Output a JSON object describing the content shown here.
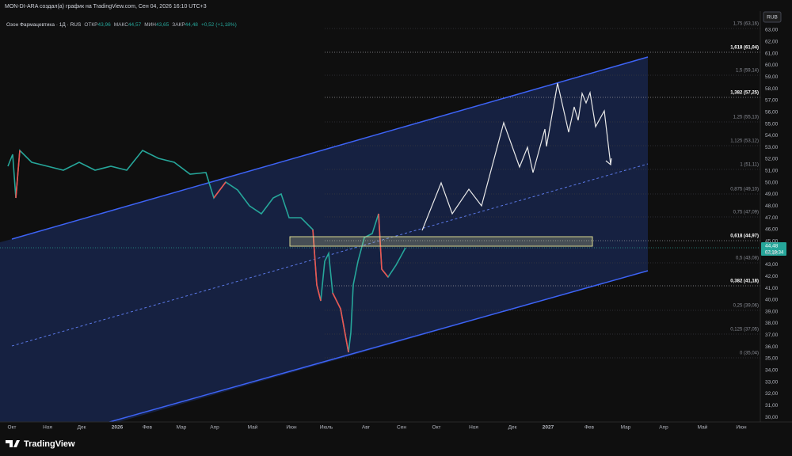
{
  "header": {
    "title": "MON-DI-ARA создал(а) график на TradingView.com, Сен 04, 2026 16:10 UTC+3"
  },
  "legend": {
    "symbol": "Озон Фармацевтика · 1Д · RUS",
    "open_label": "ОТКР",
    "open": "43,96",
    "high_label": "МАКС",
    "high": "44,57",
    "low_label": "МИН",
    "low": "43,65",
    "close_label": "ЗАКР",
    "close": "44,48",
    "change": "+0,52 (+1,18%)"
  },
  "currency": "RUB",
  "price_axis": [
    "63,00",
    "62,00",
    "61,00",
    "60,00",
    "59,00",
    "58,00",
    "57,00",
    "56,00",
    "55,00",
    "54,00",
    "53,00",
    "52,00",
    "51,00",
    "50,00",
    "49,00",
    "48,00",
    "47,00",
    "46,00",
    "45,00",
    "44,00",
    "43,00",
    "42,00",
    "41,00",
    "40,00",
    "39,00",
    "38,00",
    "37,00",
    "36,00",
    "35,00",
    "34,00",
    "33,00",
    "32,00",
    "31,00",
    "30,00"
  ],
  "time_axis": [
    "Окт",
    "Ноя",
    "Дек",
    "2026",
    "Фев",
    "Мар",
    "Апр",
    "Май",
    "Июн",
    "Июль",
    "Авг",
    "Сен",
    "Окт",
    "Ноя",
    "Дек",
    "2027",
    "Фев",
    "Мар",
    "Апр",
    "Май",
    "Июн"
  ],
  "fib_levels": [
    {
      "label": "1,75 (63,16)",
      "bold": false
    },
    {
      "label": "1,618 (61,04)",
      "bold": true
    },
    {
      "label": "1,5 (59,14)",
      "bold": false
    },
    {
      "label": "1,382 (57,25)",
      "bold": true
    },
    {
      "label": "1,25 (55,13)",
      "bold": false
    },
    {
      "label": "1,125 (53,12)",
      "bold": false
    },
    {
      "label": "1 (51,11)",
      "bold": false
    },
    {
      "label": "0,875 (49,10)",
      "bold": false
    },
    {
      "label": "0,75 (47,09)",
      "bold": false
    },
    {
      "label": "0,618 (44,97)",
      "bold": true
    },
    {
      "label": "0,5 (43,08)",
      "bold": false
    },
    {
      "label": "0,382 (41,18)",
      "bold": true
    },
    {
      "label": "0,25 (39,06)",
      "bold": false
    },
    {
      "label": "0,125 (37,05)",
      "bold": false
    },
    {
      "label": "0 (35,04)",
      "bold": false
    }
  ],
  "last_price": {
    "price": "44,48",
    "countdown": "07:19:34"
  },
  "brand": "TradingView"
}
